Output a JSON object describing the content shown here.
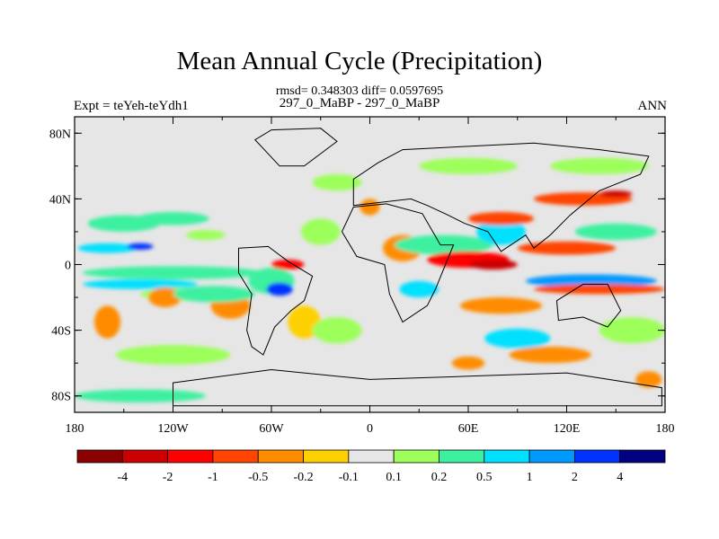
{
  "chart_data": {
    "type": "heatmap",
    "title": "Mean Annual Cycle (Precipitation)",
    "subtitle": "rmsd= 0.348303 diff= 0.0597695",
    "left_label": "Expt = teYeh-teYdh1",
    "center_label": "297_0_MaBP - 297_0_MaBP",
    "right_label": "ANN",
    "x_ticks": [
      {
        "value": -180,
        "label": "180"
      },
      {
        "value": -120,
        "label": "120W"
      },
      {
        "value": -60,
        "label": "60W"
      },
      {
        "value": 0,
        "label": "0"
      },
      {
        "value": 60,
        "label": "60E"
      },
      {
        "value": 120,
        "label": "120E"
      },
      {
        "value": 180,
        "label": "180"
      }
    ],
    "y_ticks": [
      {
        "value": 80,
        "label": "80N"
      },
      {
        "value": 40,
        "label": "40N"
      },
      {
        "value": 0,
        "label": "0"
      },
      {
        "value": -40,
        "label": "40S"
      },
      {
        "value": -80,
        "label": "80S"
      }
    ],
    "xlim": [
      -180,
      180
    ],
    "ylim": [
      -90,
      90
    ],
    "colorbar": {
      "labels": [
        "-4",
        "-2",
        "-1",
        "-0.5",
        "-0.2",
        "-0.1",
        "0.1",
        "0.2",
        "0.5",
        "1",
        "2",
        "4"
      ],
      "colors": [
        "#8b0000",
        "#cc0000",
        "#ff0000",
        "#ff4500",
        "#ff8c00",
        "#ffd000",
        "#e6e6e6",
        "#9cff5a",
        "#3cf0a0",
        "#00e0ff",
        "#0099ff",
        "#0033ff",
        "#000080"
      ]
    },
    "features": [
      {
        "lon": -150,
        "lat": 25,
        "rx": 22,
        "ry": 5,
        "level": 8
      },
      {
        "lon": -160,
        "lat": 10,
        "rx": 18,
        "ry": 3,
        "level": 9
      },
      {
        "lon": -140,
        "lat": 11,
        "rx": 8,
        "ry": 2,
        "level": 11
      },
      {
        "lon": -120,
        "lat": 28,
        "rx": 22,
        "ry": 4,
        "level": 8
      },
      {
        "lon": -100,
        "lat": 18,
        "rx": 12,
        "ry": 3,
        "level": 7
      },
      {
        "lon": -120,
        "lat": -5,
        "rx": 55,
        "ry": 4,
        "level": 8
      },
      {
        "lon": -140,
        "lat": -12,
        "rx": 35,
        "ry": 3,
        "level": 9
      },
      {
        "lon": -110,
        "lat": -18,
        "rx": 30,
        "ry": 4,
        "level": 7
      },
      {
        "lon": -120,
        "lat": -55,
        "rx": 35,
        "ry": 6,
        "level": 7
      },
      {
        "lon": -140,
        "lat": -80,
        "rx": 40,
        "ry": 4,
        "level": 8
      },
      {
        "lon": -160,
        "lat": -35,
        "rx": 8,
        "ry": 10,
        "level": 4
      },
      {
        "lon": -125,
        "lat": -20,
        "rx": 10,
        "ry": 6,
        "level": 4
      },
      {
        "lon": -85,
        "lat": -25,
        "rx": 12,
        "ry": 8,
        "level": 4
      },
      {
        "lon": -95,
        "lat": -18,
        "rx": 25,
        "ry": 5,
        "level": 8
      },
      {
        "lon": -60,
        "lat": -10,
        "rx": 14,
        "ry": 8,
        "level": 8
      },
      {
        "lon": -55,
        "lat": -15,
        "rx": 8,
        "ry": 4,
        "level": 11
      },
      {
        "lon": -50,
        "lat": 0,
        "rx": 10,
        "ry": 3,
        "level": 2
      },
      {
        "lon": -40,
        "lat": -35,
        "rx": 10,
        "ry": 10,
        "level": 5
      },
      {
        "lon": -30,
        "lat": 20,
        "rx": 12,
        "ry": 8,
        "level": 7
      },
      {
        "lon": -20,
        "lat": -40,
        "rx": 15,
        "ry": 8,
        "level": 7
      },
      {
        "lon": 0,
        "lat": 35,
        "rx": 6,
        "ry": 5,
        "level": 4
      },
      {
        "lon": 20,
        "lat": 10,
        "rx": 12,
        "ry": 8,
        "level": 4
      },
      {
        "lon": 30,
        "lat": -15,
        "rx": 12,
        "ry": 5,
        "level": 9
      },
      {
        "lon": 45,
        "lat": 12,
        "rx": 30,
        "ry": 6,
        "level": 8
      },
      {
        "lon": 60,
        "lat": 3,
        "rx": 25,
        "ry": 5,
        "level": 2
      },
      {
        "lon": 75,
        "lat": 0,
        "rx": 15,
        "ry": 3,
        "level": 1
      },
      {
        "lon": 80,
        "lat": 20,
        "rx": 15,
        "ry": 8,
        "level": 9
      },
      {
        "lon": 80,
        "lat": 28,
        "rx": 20,
        "ry": 4,
        "level": 3
      },
      {
        "lon": 120,
        "lat": 10,
        "rx": 30,
        "ry": 4,
        "level": 3
      },
      {
        "lon": 135,
        "lat": -10,
        "rx": 40,
        "ry": 4,
        "level": 10
      },
      {
        "lon": 140,
        "lat": -15,
        "rx": 40,
        "ry": 3,
        "level": 3
      },
      {
        "lon": 130,
        "lat": 40,
        "rx": 30,
        "ry": 4,
        "level": 3
      },
      {
        "lon": 150,
        "lat": 43,
        "rx": 10,
        "ry": 2,
        "level": 1
      },
      {
        "lon": 150,
        "lat": 20,
        "rx": 25,
        "ry": 5,
        "level": 8
      },
      {
        "lon": 80,
        "lat": -25,
        "rx": 25,
        "ry": 5,
        "level": 4
      },
      {
        "lon": 90,
        "lat": -45,
        "rx": 20,
        "ry": 6,
        "level": 9
      },
      {
        "lon": 110,
        "lat": -55,
        "rx": 25,
        "ry": 5,
        "level": 4
      },
      {
        "lon": 60,
        "lat": -60,
        "rx": 10,
        "ry": 4,
        "level": 4
      },
      {
        "lon": 160,
        "lat": -40,
        "rx": 20,
        "ry": 8,
        "level": 7
      },
      {
        "lon": 170,
        "lat": -70,
        "rx": 8,
        "ry": 5,
        "level": 4
      },
      {
        "lon": 60,
        "lat": 60,
        "rx": 30,
        "ry": 5,
        "level": 7
      },
      {
        "lon": 140,
        "lat": 60,
        "rx": 30,
        "ry": 5,
        "level": 7
      },
      {
        "lon": -20,
        "lat": 50,
        "rx": 15,
        "ry": 5,
        "level": 7
      }
    ]
  }
}
